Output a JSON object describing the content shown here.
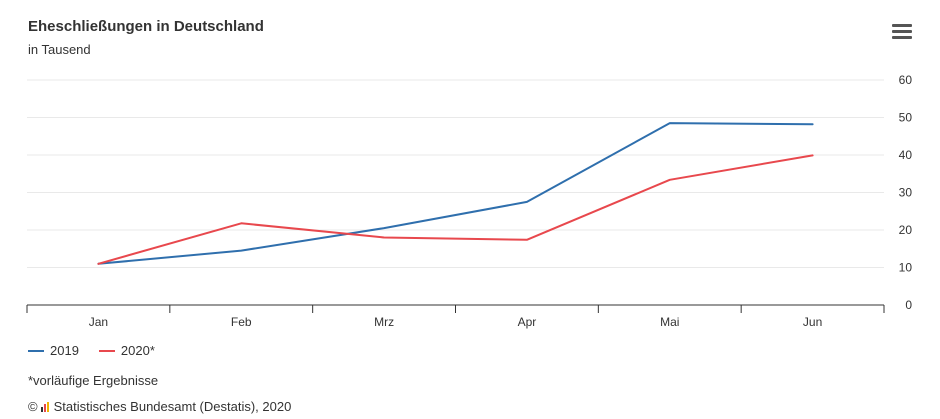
{
  "header": {
    "title": "Eheschließungen in Deutschland",
    "subtitle": "in Tausend",
    "menu_icon": "hamburger-menu-icon"
  },
  "footer": {
    "footnote": "*vorläufige Ergebnisse",
    "copyright_symbol": "©",
    "source": "Statistisches Bundesamt (Destatis), 2020",
    "logo_icon": "destatis-logo-icon"
  },
  "chart_data": {
    "type": "line",
    "title": "Eheschließungen in Deutschland",
    "subtitle": "in Tausend",
    "categories": [
      "Jan",
      "Feb",
      "Mrz",
      "Apr",
      "Mai",
      "Jun"
    ],
    "series": [
      {
        "name": "2019",
        "color": "#2f6fad",
        "values": [
          11,
          14.5,
          20.5,
          27.5,
          48.5,
          48.2
        ]
      },
      {
        "name": "2020*",
        "color": "#e8484d",
        "values": [
          11,
          21.8,
          18,
          17.4,
          33.4,
          39.9
        ]
      }
    ],
    "ylim": [
      0,
      60
    ],
    "yticks": [
      0,
      10,
      20,
      30,
      40,
      50,
      60
    ],
    "y_axis_side": "right",
    "grid": true,
    "legend_position": "bottom-left",
    "xlabel": "",
    "ylabel": ""
  }
}
